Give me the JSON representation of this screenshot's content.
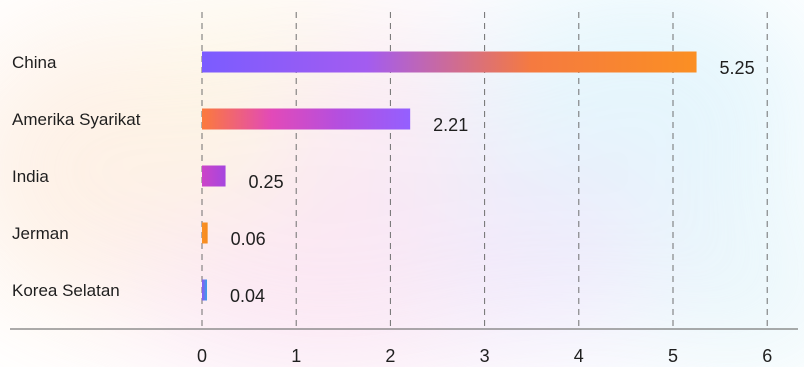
{
  "chart_data": {
    "type": "bar",
    "orientation": "horizontal",
    "categories": [
      "China",
      "Amerika Syarikat",
      "India",
      "Jerman",
      "Korea Selatan"
    ],
    "values": [
      5.25,
      2.21,
      0.25,
      0.06,
      0.04
    ],
    "value_labels": [
      "5.25",
      "2.21",
      "0.25",
      "0.06",
      "0.04"
    ],
    "xlim": [
      0,
      6
    ],
    "xticks": [
      "0",
      "1",
      "2",
      "3",
      "4",
      "5",
      "6"
    ],
    "grid": "vertical-dashed",
    "bar_gradients": [
      [
        "#7b5cff",
        "#a35cf0",
        "#f57a40",
        "#fb8f23"
      ],
      [
        "#fb7a3c",
        "#e24ab8",
        "#b34fe0",
        "#9460ff"
      ],
      [
        "#cc44c8",
        "#a646df"
      ],
      [
        "#fb8f23",
        "#f48c1f"
      ],
      [
        "#8a59f5",
        "#3aa0e8"
      ]
    ]
  }
}
